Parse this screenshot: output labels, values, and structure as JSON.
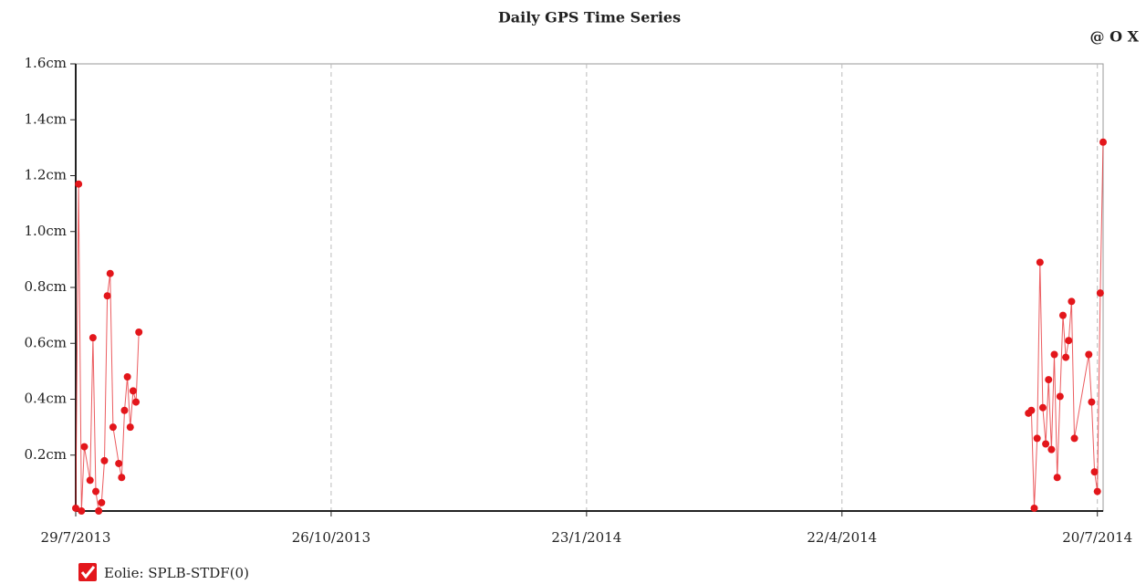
{
  "toolbar": "@ O X",
  "chart_data": {
    "type": "line",
    "title": "Daily GPS Time Series",
    "x": [
      "2013-07-29",
      "2013-07-30",
      "2013-07-31",
      "2013-08-01",
      "2013-08-03",
      "2013-08-04",
      "2013-08-05",
      "2013-08-06",
      "2013-08-07",
      "2013-08-08",
      "2013-08-09",
      "2013-08-10",
      "2013-08-11",
      "2013-08-13",
      "2013-08-14",
      "2013-08-15",
      "2013-08-16",
      "2013-08-17",
      "2013-08-18",
      "2013-08-19",
      "2013-08-20",
      "2013-08-21",
      "2014-06-26",
      "2014-06-27",
      "2014-06-28",
      "2014-06-29",
      "2014-06-30",
      "2014-07-01",
      "2014-07-02",
      "2014-07-03",
      "2014-07-04",
      "2014-07-05",
      "2014-07-06",
      "2014-07-07",
      "2014-07-08",
      "2014-07-09",
      "2014-07-10",
      "2014-07-11",
      "2014-07-12",
      "2014-07-17",
      "2014-07-18",
      "2014-07-19",
      "2014-07-20",
      "2014-07-21",
      "2014-07-22"
    ],
    "series": [
      {
        "name": "Eolie: SPLB-STDF(0)",
        "color": "#e3161b",
        "values": [
          0.01,
          1.17,
          0.0,
          0.23,
          0.11,
          0.62,
          0.07,
          0.0,
          0.03,
          0.18,
          0.77,
          0.85,
          0.3,
          0.17,
          0.12,
          0.36,
          0.48,
          0.3,
          0.43,
          0.39,
          0.64,
          null,
          0.35,
          0.36,
          0.01,
          0.26,
          0.89,
          0.37,
          0.24,
          0.47,
          0.22,
          0.56,
          0.12,
          0.41,
          0.7,
          0.55,
          0.61,
          0.75,
          0.26,
          0.56,
          0.39,
          0.14,
          0.07,
          0.78,
          1.32
        ]
      }
    ],
    "xlim": [
      "2013-07-29",
      "2014-07-22"
    ],
    "xticks": [
      {
        "value": "2013-07-29",
        "label": "29/7/2013"
      },
      {
        "value": "2013-10-26",
        "label": "26/10/2013"
      },
      {
        "value": "2014-01-23",
        "label": "23/1/2014"
      },
      {
        "value": "2014-04-22",
        "label": "22/4/2014"
      },
      {
        "value": "2014-07-20",
        "label": "20/7/2014"
      }
    ],
    "ylim": [
      0,
      1.6
    ],
    "yticks": [
      {
        "value": 0.2,
        "label": "0.2cm"
      },
      {
        "value": 0.4,
        "label": "0.4cm"
      },
      {
        "value": 0.6,
        "label": "0.6cm"
      },
      {
        "value": 0.8,
        "label": "0.8cm"
      },
      {
        "value": 1.0,
        "label": "1.0cm"
      },
      {
        "value": 1.2,
        "label": "1.2cm"
      },
      {
        "value": 1.4,
        "label": "1.4cm"
      },
      {
        "value": 1.6,
        "label": "1.6cm"
      }
    ],
    "grid": "x"
  }
}
